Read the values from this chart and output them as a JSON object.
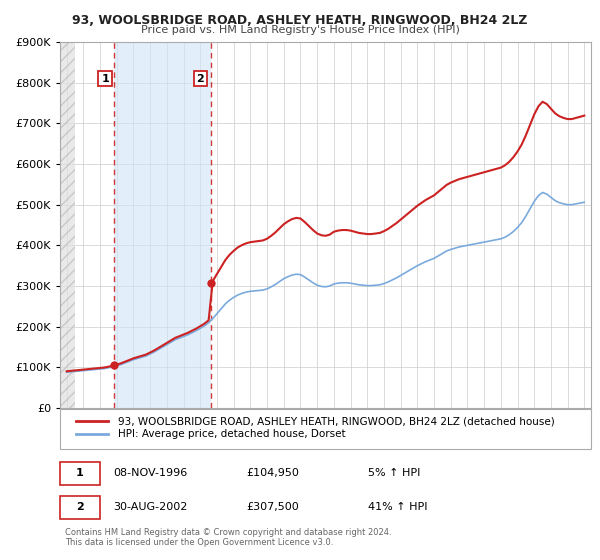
{
  "title": "93, WOOLSBRIDGE ROAD, ASHLEY HEATH, RINGWOOD, BH24 2LZ",
  "subtitle": "Price paid vs. HM Land Registry's House Price Index (HPI)",
  "legend_line1": "93, WOOLSBRIDGE ROAD, ASHLEY HEATH, RINGWOOD, BH24 2LZ (detached house)",
  "legend_line2": "HPI: Average price, detached house, Dorset",
  "table_row1": [
    "1",
    "08-NOV-1996",
    "£104,950",
    "5% ↑ HPI"
  ],
  "table_row2": [
    "2",
    "30-AUG-2002",
    "£307,500",
    "41% ↑ HPI"
  ],
  "footnote": "Contains HM Land Registry data © Crown copyright and database right 2024.\nThis data is licensed under the Open Government Licence v3.0.",
  "sale1_date": 1996.85,
  "sale1_price": 104950,
  "sale2_date": 2002.66,
  "sale2_price": 307500,
  "hpi_color": "#7aaadd",
  "price_color": "#cc2222",
  "sale_marker_color": "#cc2222",
  "vline_color": "#cc2222",
  "grid_color": "#cccccc",
  "background_color": "#ffffff",
  "ylim": [
    0,
    900000
  ],
  "xlim_start": 1993.6,
  "xlim_end": 2025.4,
  "years_hpi": [
    1994.0,
    1994.25,
    1994.5,
    1994.75,
    1995.0,
    1995.25,
    1995.5,
    1995.75,
    1996.0,
    1996.25,
    1996.5,
    1996.75,
    1997.0,
    1997.25,
    1997.5,
    1997.75,
    1998.0,
    1998.25,
    1998.5,
    1998.75,
    1999.0,
    1999.25,
    1999.5,
    1999.75,
    2000.0,
    2000.25,
    2000.5,
    2000.75,
    2001.0,
    2001.25,
    2001.5,
    2001.75,
    2002.0,
    2002.25,
    2002.5,
    2002.75,
    2003.0,
    2003.25,
    2003.5,
    2003.75,
    2004.0,
    2004.25,
    2004.5,
    2004.75,
    2005.0,
    2005.25,
    2005.5,
    2005.75,
    2006.0,
    2006.25,
    2006.5,
    2006.75,
    2007.0,
    2007.25,
    2007.5,
    2007.75,
    2008.0,
    2008.25,
    2008.5,
    2008.75,
    2009.0,
    2009.25,
    2009.5,
    2009.75,
    2010.0,
    2010.25,
    2010.5,
    2010.75,
    2011.0,
    2011.25,
    2011.5,
    2011.75,
    2012.0,
    2012.25,
    2012.5,
    2012.75,
    2013.0,
    2013.25,
    2013.5,
    2013.75,
    2014.0,
    2014.25,
    2014.5,
    2014.75,
    2015.0,
    2015.25,
    2015.5,
    2015.75,
    2016.0,
    2016.25,
    2016.5,
    2016.75,
    2017.0,
    2017.25,
    2017.5,
    2017.75,
    2018.0,
    2018.25,
    2018.5,
    2018.75,
    2019.0,
    2019.25,
    2019.5,
    2019.75,
    2020.0,
    2020.25,
    2020.5,
    2020.75,
    2021.0,
    2021.25,
    2021.5,
    2021.75,
    2022.0,
    2022.25,
    2022.5,
    2022.75,
    2023.0,
    2023.25,
    2023.5,
    2023.75,
    2024.0,
    2024.25,
    2024.5,
    2024.75,
    2025.0
  ],
  "hpi_values": [
    88000,
    89000,
    90000,
    91000,
    92000,
    93000,
    94000,
    95000,
    96000,
    97000,
    99000,
    101000,
    104000,
    107000,
    111000,
    115000,
    119000,
    122000,
    125000,
    128000,
    133000,
    138000,
    144000,
    150000,
    156000,
    162000,
    168000,
    172000,
    176000,
    180000,
    185000,
    190000,
    196000,
    202000,
    210000,
    220000,
    232000,
    244000,
    256000,
    265000,
    272000,
    278000,
    282000,
    285000,
    287000,
    288000,
    289000,
    290000,
    293000,
    298000,
    304000,
    311000,
    318000,
    323000,
    327000,
    329000,
    328000,
    322000,
    315000,
    308000,
    302000,
    299000,
    298000,
    300000,
    305000,
    307000,
    308000,
    308000,
    307000,
    305000,
    303000,
    302000,
    301000,
    301000,
    302000,
    303000,
    306000,
    310000,
    315000,
    320000,
    326000,
    332000,
    338000,
    344000,
    350000,
    355000,
    360000,
    364000,
    368000,
    374000,
    380000,
    386000,
    390000,
    393000,
    396000,
    398000,
    400000,
    402000,
    404000,
    406000,
    408000,
    410000,
    412000,
    414000,
    416000,
    420000,
    426000,
    434000,
    444000,
    456000,
    472000,
    490000,
    508000,
    522000,
    530000,
    526000,
    518000,
    510000,
    505000,
    502000,
    500000,
    500000,
    502000,
    504000,
    506000
  ]
}
